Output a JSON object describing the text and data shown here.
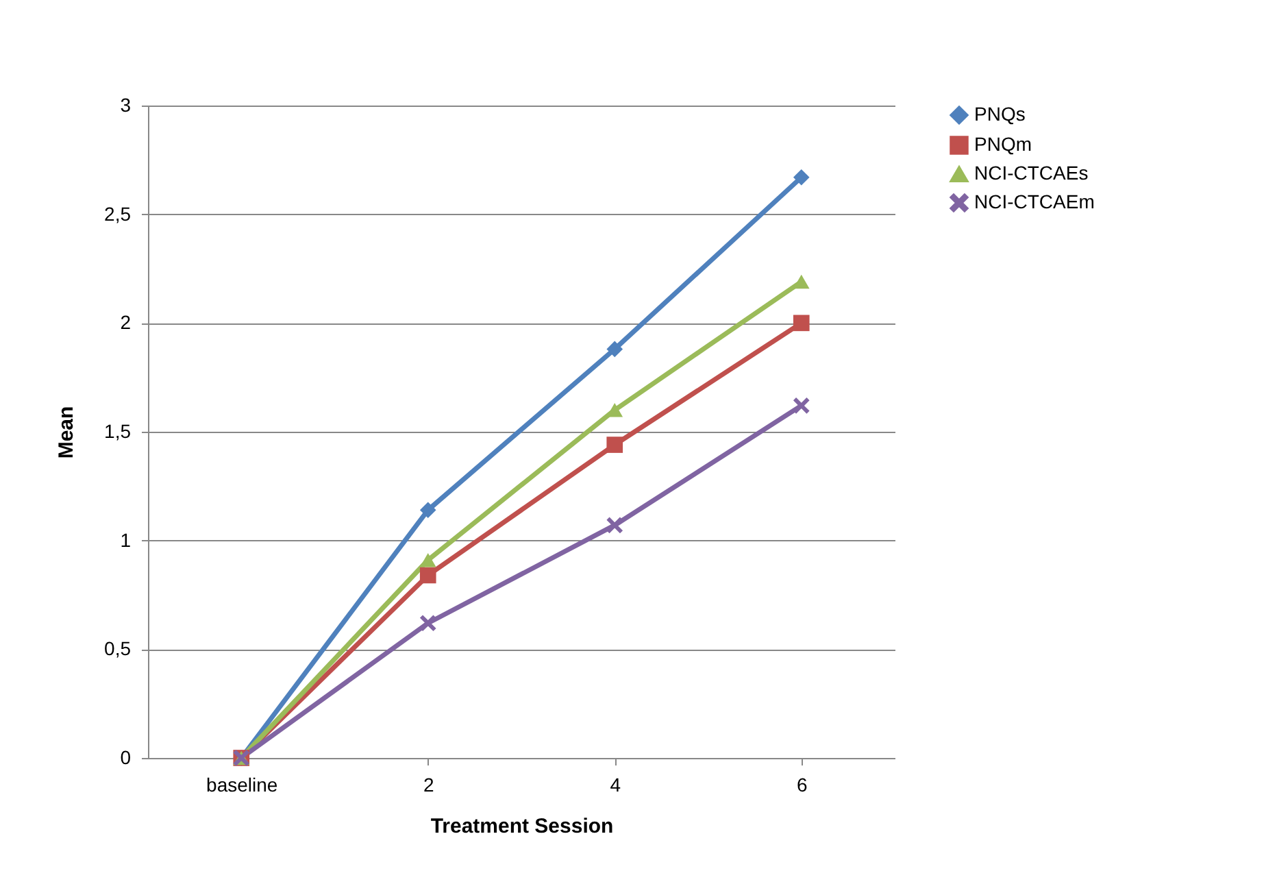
{
  "chart_data": {
    "type": "line",
    "xlabel": "Treatment Session",
    "ylabel": "Mean",
    "categories": [
      "baseline",
      "2",
      "4",
      "6"
    ],
    "series": [
      {
        "name": "PNQs",
        "color": "#4f81bd",
        "marker": "diamond",
        "values": [
          0,
          1.14,
          1.88,
          2.67
        ]
      },
      {
        "name": "PNQm",
        "color": "#c0504d",
        "marker": "square",
        "values": [
          0,
          0.84,
          1.44,
          2.0
        ]
      },
      {
        "name": "NCI-CTCAEs",
        "color": "#9bbb59",
        "marker": "triangle",
        "values": [
          0,
          0.91,
          1.6,
          2.19
        ]
      },
      {
        "name": "NCI-CTCAEm",
        "color": "#8064a2",
        "marker": "cross",
        "values": [
          0,
          0.62,
          1.07,
          1.62
        ]
      }
    ],
    "ylim": [
      0,
      3
    ],
    "yticks": [
      "0",
      {
        "value": 0.5,
        "label": "0,5"
      },
      1,
      {
        "value": 1.5,
        "label": "1,5"
      },
      2,
      {
        "value": 2.5,
        "label": "2,5"
      },
      3
    ],
    "grid": "y",
    "legend": "right"
  }
}
